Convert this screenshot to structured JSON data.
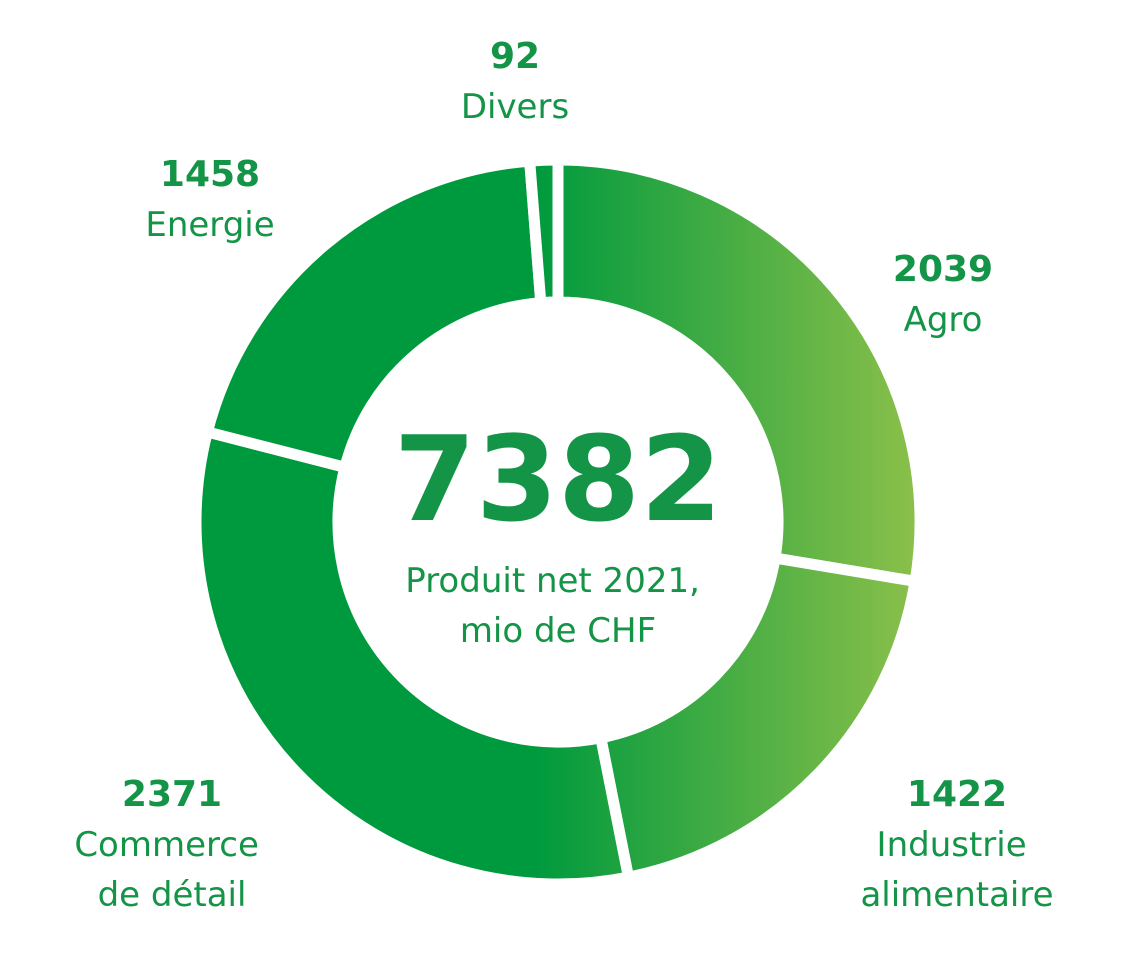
{
  "chart_data": {
    "type": "pie",
    "donut": true,
    "categories": [
      "Agro",
      "Industrie alimentaire",
      "Commerce de détail",
      "Energie",
      "Divers"
    ],
    "values": [
      2039,
      1422,
      2371,
      1458,
      92
    ],
    "total": 7382,
    "center_label": "Produit net 2021, mio de CHF",
    "gradient": [
      "#009a3e",
      "#8cc04a"
    ],
    "text_color": "#139447"
  }
}
